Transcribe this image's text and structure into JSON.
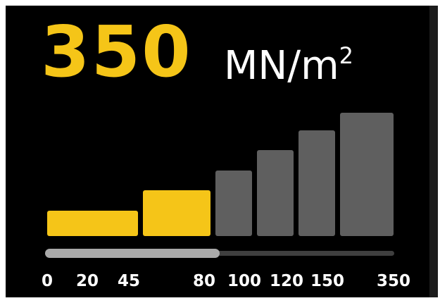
{
  "display": {
    "value": "350",
    "unit_base": "MN/m",
    "unit_exponent": "2"
  },
  "scale": {
    "steps": [
      "0",
      "20",
      "45",
      "80",
      "100",
      "120",
      "150",
      "350"
    ],
    "active_step_count": 2,
    "slider_fraction": 0.5
  },
  "colors": {
    "background": "#000000",
    "active": "#f5c518",
    "inactive": "#5f5f5f",
    "track": "#3f3f3f",
    "track_fill": "#a9a9a9",
    "label": "#ffffff"
  }
}
